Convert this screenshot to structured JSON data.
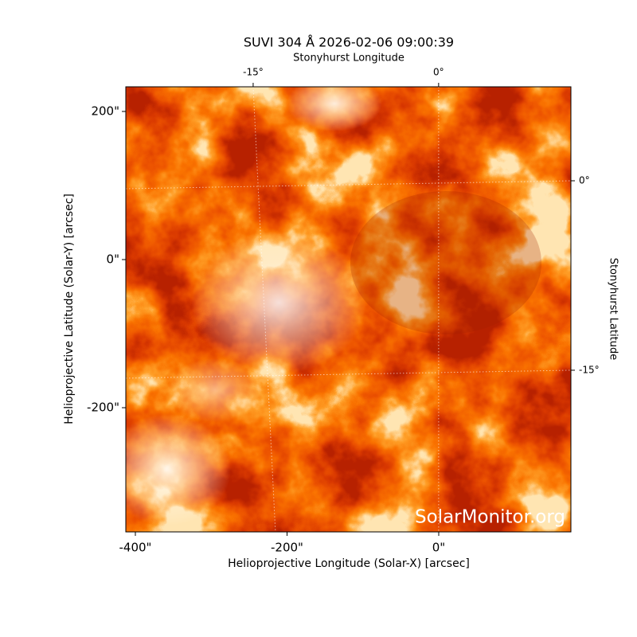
{
  "chart_data": {
    "type": "image",
    "title": "SUVI 304 Å 2026-02-06 09:00:39",
    "xlabel": "Helioprojective Longitude (Solar-X) [arcsec]",
    "ylabel": "Helioprojective Latitude (Solar-Y) [arcsec]",
    "top_label": "Stonyhurst Longitude",
    "right_label": "Stonyhurst Latitude",
    "watermark": "SolarMonitor.org",
    "xlim": [
      -412.6,
      174.3
    ],
    "ylim": [
      -367.7,
      233.3
    ],
    "xticks": [
      {
        "value": -400,
        "label": "-400\""
      },
      {
        "value": -200,
        "label": "-200\""
      },
      {
        "value": 0,
        "label": "0\""
      }
    ],
    "yticks": [
      {
        "value": 200,
        "label": "200\""
      },
      {
        "value": 0,
        "label": "0\""
      },
      {
        "value": -200,
        "label": "-200\""
      }
    ],
    "top_xlim": [
      -25.3,
      10.7
    ],
    "top_xticks": [
      {
        "value": -15,
        "label": "-15°"
      },
      {
        "value": 0,
        "label": "0°"
      }
    ],
    "right_ylim": [
      -27.8,
      7.44
    ],
    "right_yticks": [
      {
        "value": 0,
        "label": "0°"
      },
      {
        "value": -15,
        "label": "-15°"
      }
    ],
    "grid": true
  }
}
